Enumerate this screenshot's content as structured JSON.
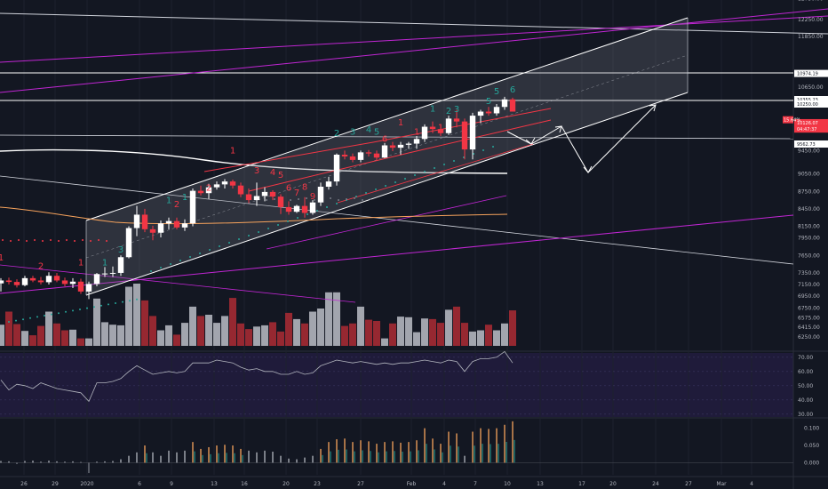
{
  "chart_data": {
    "type": "candlestick",
    "price_axis": {
      "labels": [
        "12750.00",
        "12250.00",
        "11850.00",
        "10974.19",
        "10650.00",
        "10355.23",
        "10250.00",
        "9562.73",
        "9450.00",
        "9050.00",
        "8750.00",
        "8450.00",
        "8150.00",
        "7950.00",
        "7650.00",
        "7350.00",
        "7150.00",
        "6950.00",
        "6750.00",
        "6575.00",
        "6415.00",
        "6250.00"
      ],
      "ylim": [
        6150,
        12800
      ]
    },
    "price_tags": [
      {
        "text": "10974.19",
        "price": 10974.19,
        "bg": "#ffffff",
        "fg": "#131722"
      },
      {
        "text": "10355.23",
        "price": 10355.23,
        "bg": "#ffffff",
        "fg": "#131722"
      },
      {
        "text": "10250.00",
        "price": 10250,
        "bg": "#ffffff",
        "fg": "#131722"
      },
      {
        "text": "9562.73",
        "price": 9562.73,
        "bg": "#ffffff",
        "fg": "#131722"
      },
      {
        "text": "10126.07",
        "price": 9930,
        "bg": "#f23645",
        "fg": "#ffffff"
      },
      {
        "text": "04:47:37",
        "price": 9820,
        "bg": "#f23645",
        "fg": "#ffffff"
      }
    ],
    "current_tag": {
      "text": "15.64%",
      "price": 9980,
      "bg": "#f23645",
      "fg": "#ffffff"
    },
    "rsi_axis": {
      "labels": [
        "70.00",
        "60.00",
        "50.00",
        "40.00",
        "30.00"
      ],
      "values": [
        70,
        60,
        50,
        40,
        30
      ],
      "ylim": [
        28,
        73
      ]
    },
    "osc_axis": {
      "labels": [
        "0.100",
        "0.050",
        "0.000"
      ],
      "values": [
        0.1,
        0.05,
        0
      ],
      "ylim": [
        -0.035,
        0.13
      ]
    },
    "time_labels": [
      {
        "text": "26",
        "x": 27
      },
      {
        "text": "29",
        "x": 62
      },
      {
        "text": "2020",
        "x": 98
      },
      {
        "text": "6",
        "x": 157
      },
      {
        "text": "9",
        "x": 193
      },
      {
        "text": "13",
        "x": 241
      },
      {
        "text": "16",
        "x": 275
      },
      {
        "text": "20",
        "x": 322
      },
      {
        "text": "23",
        "x": 357
      },
      {
        "text": "27",
        "x": 406
      },
      {
        "text": "Feb",
        "x": 463
      },
      {
        "text": "4",
        "x": 500
      },
      {
        "text": "7",
        "x": 535
      },
      {
        "text": "10",
        "x": 571
      },
      {
        "text": "13",
        "x": 608
      },
      {
        "text": "17",
        "x": 655
      },
      {
        "text": "20",
        "x": 690
      },
      {
        "text": "24",
        "x": 738
      },
      {
        "text": "27",
        "x": 775
      },
      {
        "text": "Mar",
        "x": 812
      },
      {
        "text": "4",
        "x": 846
      }
    ],
    "candles": [
      [
        7170,
        7260,
        7030,
        7220
      ],
      [
        7220,
        7270,
        7150,
        7195
      ],
      [
        7195,
        7240,
        7100,
        7140
      ],
      [
        7140,
        7300,
        7120,
        7260
      ],
      [
        7260,
        7300,
        7190,
        7220
      ],
      [
        7220,
        7280,
        7150,
        7190
      ],
      [
        7190,
        7360,
        7150,
        7300
      ],
      [
        7300,
        7350,
        7190,
        7220
      ],
      [
        7220,
        7270,
        7120,
        7160
      ],
      [
        7160,
        7260,
        7090,
        7200
      ],
      [
        7200,
        7250,
        6990,
        7030
      ],
      [
        7030,
        7200,
        6900,
        7160
      ],
      [
        7160,
        7350,
        7120,
        7330
      ],
      [
        7330,
        7450,
        7280,
        7340
      ],
      [
        7340,
        7460,
        7280,
        7350
      ],
      [
        7350,
        7650,
        7300,
        7620
      ],
      [
        7620,
        8150,
        7600,
        8120
      ],
      [
        8120,
        8500,
        7980,
        8350
      ],
      [
        8350,
        8450,
        8050,
        8100
      ],
      [
        8100,
        8160,
        7910,
        8040
      ],
      [
        8040,
        8250,
        7960,
        8200
      ],
      [
        8200,
        8300,
        8100,
        8240
      ],
      [
        8240,
        8300,
        8100,
        8130
      ],
      [
        8130,
        8270,
        8070,
        8200
      ],
      [
        8200,
        8800,
        8150,
        8760
      ],
      [
        8760,
        8850,
        8680,
        8720
      ],
      [
        8720,
        8880,
        8620,
        8820
      ],
      [
        8820,
        8920,
        8780,
        8870
      ],
      [
        8870,
        8960,
        8800,
        8920
      ],
      [
        8920,
        8950,
        8800,
        8850
      ],
      [
        8850,
        8900,
        8650,
        8700
      ],
      [
        8700,
        8800,
        8550,
        8600
      ],
      [
        8600,
        8900,
        8500,
        8670
      ],
      [
        8670,
        8820,
        8580,
        8740
      ],
      [
        8740,
        8770,
        8600,
        8660
      ],
      [
        8660,
        8700,
        8360,
        8480
      ],
      [
        8480,
        8580,
        8350,
        8400
      ],
      [
        8400,
        8520,
        8380,
        8500
      ],
      [
        8500,
        8650,
        8300,
        8380
      ],
      [
        8380,
        8600,
        8350,
        8560
      ],
      [
        8560,
        8900,
        8500,
        8830
      ],
      [
        8830,
        9000,
        8780,
        8920
      ],
      [
        8920,
        9400,
        8850,
        9380
      ],
      [
        9380,
        9450,
        9300,
        9350
      ],
      [
        9350,
        9400,
        9250,
        9290
      ],
      [
        9290,
        9450,
        9250,
        9420
      ],
      [
        9420,
        9460,
        9350,
        9400
      ],
      [
        9400,
        9450,
        9290,
        9330
      ],
      [
        9330,
        9580,
        9320,
        9540
      ],
      [
        9540,
        9600,
        9440,
        9500
      ],
      [
        9500,
        9600,
        9380,
        9550
      ],
      [
        9550,
        9600,
        9480,
        9570
      ],
      [
        9570,
        9700,
        9480,
        9650
      ],
      [
        9650,
        9900,
        9600,
        9860
      ],
      [
        9860,
        9950,
        9750,
        9820
      ],
      [
        9820,
        9900,
        9700,
        9750
      ],
      [
        9750,
        10050,
        9720,
        10000
      ],
      [
        10000,
        10150,
        9850,
        9950
      ],
      [
        9950,
        10000,
        9300,
        9470
      ],
      [
        9470,
        10100,
        9300,
        10050
      ],
      [
        10050,
        10150,
        9920,
        10120
      ],
      [
        10120,
        10200,
        10050,
        10090
      ],
      [
        10090,
        10250,
        10050,
        10200
      ],
      [
        10200,
        10420,
        10150,
        10360
      ],
      [
        10360,
        10400,
        10150,
        10120
      ]
    ],
    "volumes": [
      0.34,
      0.55,
      0.35,
      0.24,
      0.17,
      0.32,
      0.55,
      0.36,
      0.25,
      0.26,
      0.12,
      0.12,
      0.76,
      0.38,
      0.34,
      0.33,
      0.95,
      1.0,
      0.73,
      0.48,
      0.25,
      0.33,
      0.18,
      0.37,
      0.63,
      0.48,
      0.5,
      0.37,
      0.48,
      0.77,
      0.36,
      0.27,
      0.31,
      0.33,
      0.38,
      0.23,
      0.53,
      0.43,
      0.36,
      0.55,
      0.6,
      0.86,
      0.86,
      0.32,
      0.36,
      0.63,
      0.42,
      0.4,
      0.12,
      0.36,
      0.47,
      0.46,
      0.22,
      0.44,
      0.43,
      0.37,
      0.58,
      0.63,
      0.37,
      0.23,
      0.25,
      0.34,
      0.25,
      0.36,
      0.57
    ],
    "rsi": [
      54,
      47,
      51,
      50,
      48,
      52,
      50,
      48,
      47,
      46,
      45,
      39,
      52,
      52,
      53,
      55,
      60,
      64,
      61,
      58,
      59,
      60,
      59,
      60,
      66,
      66,
      66,
      68,
      67,
      66,
      63,
      61,
      62,
      60,
      60,
      58,
      58,
      60,
      58,
      59,
      64,
      66,
      68,
      67,
      66,
      67,
      66,
      65,
      66,
      65,
      66,
      66,
      67,
      68,
      67,
      66,
      68,
      67,
      60,
      67,
      69,
      69,
      70,
      74,
      66
    ],
    "osc": [
      0.005,
      0.004,
      -0.004,
      0.005,
      0.006,
      0.003,
      0.006,
      0.004,
      0.003,
      0.004,
      0.002,
      -0.03,
      0.003,
      0.004,
      0.005,
      0.01,
      0.02,
      0.03,
      0.05,
      0.03,
      0.02,
      0.035,
      0.03,
      0.035,
      0.06,
      0.04,
      0.045,
      0.05,
      0.052,
      0.05,
      0.04,
      0.035,
      0.03,
      0.035,
      0.032,
      0.02,
      0.012,
      0.01,
      0.015,
      0.02,
      0.04,
      0.06,
      0.068,
      0.07,
      0.06,
      0.065,
      0.062,
      0.055,
      0.06,
      0.062,
      0.058,
      0.06,
      0.065,
      0.1,
      0.07,
      0.055,
      0.09,
      0.085,
      0.02,
      0.09,
      0.1,
      0.098,
      0.1,
      0.11,
      0.12
    ],
    "seq_labels": [
      {
        "text": "1",
        "i": 0,
        "price": 7560,
        "color": "#f23645"
      },
      {
        "text": "2",
        "i": 5,
        "price": 7420,
        "color": "#f23645"
      },
      {
        "text": "1",
        "i": 10,
        "price": 7480,
        "color": "#f23645"
      },
      {
        "text": "1",
        "i": 13,
        "price": 7480,
        "color": "#26a69a"
      },
      {
        "text": "3",
        "i": 15,
        "price": 7700,
        "color": "#26a69a"
      },
      {
        "text": "1",
        "i": 21,
        "price": 8550,
        "color": "#26a69a"
      },
      {
        "text": "2",
        "i": 22,
        "price": 8480,
        "color": "#f23645"
      },
      {
        "text": "1",
        "i": 23,
        "price": 8600,
        "color": "#26a69a"
      },
      {
        "text": "2",
        "i": 26,
        "price": 8760,
        "color": "#f23645"
      },
      {
        "text": "1",
        "i": 29,
        "price": 9400,
        "color": "#f23645"
      },
      {
        "text": "3",
        "i": 32,
        "price": 9060,
        "color": "#f23645"
      },
      {
        "text": "4",
        "i": 34,
        "price": 9030,
        "color": "#f23645"
      },
      {
        "text": "5",
        "i": 35,
        "price": 8980,
        "color": "#f23645"
      },
      {
        "text": "6",
        "i": 36,
        "price": 8760,
        "color": "#f23645"
      },
      {
        "text": "7",
        "i": 37,
        "price": 8680,
        "color": "#f23645"
      },
      {
        "text": "8",
        "i": 38,
        "price": 8780,
        "color": "#f23645"
      },
      {
        "text": "9",
        "i": 39,
        "price": 8620,
        "color": "#f23645"
      },
      {
        "text": "2",
        "i": 42,
        "price": 9700,
        "color": "#26a69a"
      },
      {
        "text": "3",
        "i": 44,
        "price": 9720,
        "color": "#26a69a"
      },
      {
        "text": "4",
        "i": 46,
        "price": 9760,
        "color": "#26a69a"
      },
      {
        "text": "5",
        "i": 47,
        "price": 9720,
        "color": "#26a69a"
      },
      {
        "text": "6",
        "i": 48,
        "price": 9600,
        "color": "#f23645"
      },
      {
        "text": "1",
        "i": 50,
        "price": 9880,
        "color": "#f23645"
      },
      {
        "text": "1",
        "i": 52,
        "price": 9720,
        "color": "#f23645"
      },
      {
        "text": "1",
        "i": 54,
        "price": 10120,
        "color": "#26a69a"
      },
      {
        "text": "1",
        "i": 55,
        "price": 9800,
        "color": "#f23645"
      },
      {
        "text": "2",
        "i": 56,
        "price": 10080,
        "color": "#26a69a"
      },
      {
        "text": "3",
        "i": 57,
        "price": 10110,
        "color": "#26a69a"
      },
      {
        "text": "5",
        "i": 61,
        "price": 10250,
        "color": "#26a69a"
      },
      {
        "text": "5",
        "i": 62,
        "price": 10480,
        "color": "#26a69a"
      },
      {
        "text": "6",
        "i": 64,
        "price": 10520,
        "color": "#26a69a"
      }
    ]
  }
}
